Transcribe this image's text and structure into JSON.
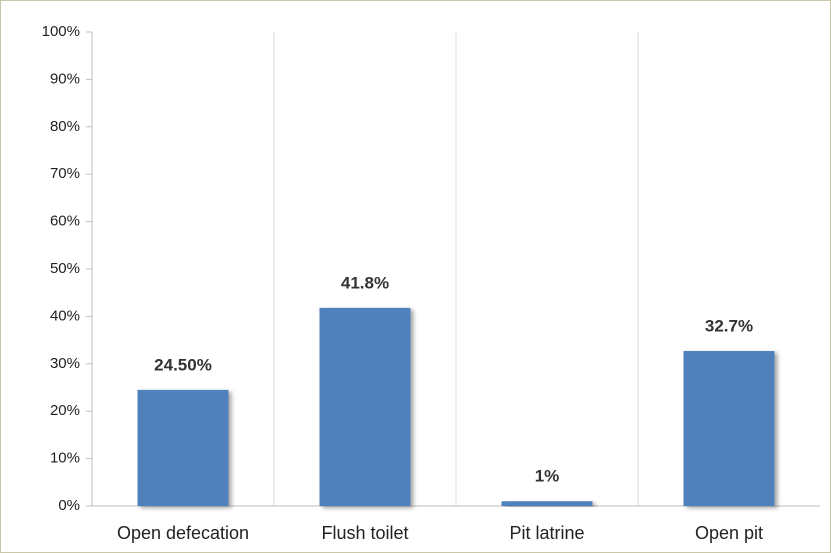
{
  "chart_data": {
    "type": "bar",
    "categories": [
      "Open defecation",
      "Flush toilet",
      "Pit latrine",
      "Open pit"
    ],
    "values": [
      24.5,
      41.8,
      1,
      32.7
    ],
    "value_labels": [
      "24.50%",
      "41.8%",
      "1%",
      "32.7%"
    ],
    "color": "#4f81bd",
    "ylim": [
      0,
      100
    ],
    "yticks": [
      {
        "value": 0,
        "label": "0%"
      },
      {
        "value": 10,
        "label": "10%"
      },
      {
        "value": 20,
        "label": "20%"
      },
      {
        "value": 30,
        "label": "30%"
      },
      {
        "value": 40,
        "label": "40%"
      },
      {
        "value": 50,
        "label": "50%"
      },
      {
        "value": 60,
        "label": "60%"
      },
      {
        "value": 70,
        "label": "70%"
      },
      {
        "value": 80,
        "label": "80%"
      },
      {
        "value": 90,
        "label": "90%"
      },
      {
        "value": 100,
        "label": "100%"
      }
    ],
    "grid": false
  }
}
